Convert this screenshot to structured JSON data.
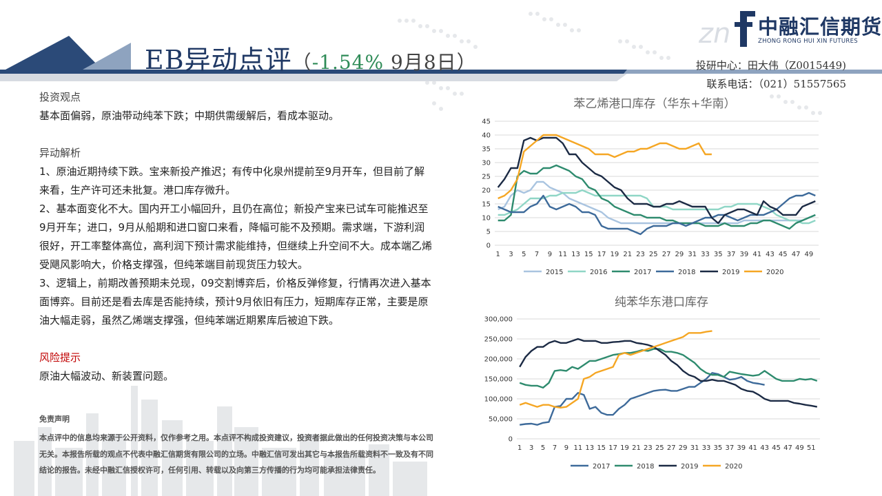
{
  "header": {
    "title_main": "EB异动点评",
    "title_open": "（",
    "title_pct": "-1.54%",
    "title_date": " 9月8日",
    "title_close": "）",
    "logo_cn": "中融汇信期货",
    "logo_en": "ZHONG RONG HUI XIN FUTURES",
    "analyst_line": "投研中心：田大伟（Z0015449)",
    "phone_line": "联系电话：（021）51557565"
  },
  "body": {
    "view_title": "投资观点",
    "view_text": "基本面偏弱，原油带动纯苯下跌；中期供需缓解后，看成本驱动。",
    "analysis_title": "异动解析",
    "analysis_1": "1、原油近期持续下跌。宝来新投产推迟；有传中化泉州提前至9月开车，但目前了解来看，生产许可还未批复。港口库存微升。",
    "analysis_2": "2、基本面变化不大。国内开工小幅回升，且仍在高位；新投产宝来已试车可能推迟至9月开车；进口，9月从船期和进口窗口来看，降幅可能不及预期。需求端，下游利润很好，开工率整体高位，高利润下预计需求能维持，但继续上升空间不大。成本端乙烯受飓风影响大，价格支撑强，但纯苯端目前现货压力较大。",
    "analysis_3": "3、逻辑上，前期改善预期未兑现，09交割博弈后，价格反弹修复，行情再次进入基本面博弈。目前还是看去库是否能持续，预计9月依旧有压力，短期库存正常，主要是原油大幅走弱，虽然乙烯端支撑强，但纯苯端近期累库后被迫下跌。",
    "risk_title": "风险提示",
    "risk_text": "原油大幅波动、新装置问题。",
    "disclaimer_title": "免责声明",
    "disclaimer_text": "本点评中的信息均来源于公开资料，仅作参考之用。本点评不构成投资建议，投资者据此做出的任何投资决策与本公司无关。本报告所载的观点不代表中融汇信期货有限公司的立场。中融汇信可发出其它与本报告所载资料不一致及有不同结论的报告。未经中融汇信授权许可，任何引用、转载以及向第三方传播的行为均可能承担法律责任。"
  },
  "chart_data": [
    {
      "type": "line",
      "title": "苯乙烯港口库存（华东+华南）",
      "xlabel": "",
      "ylabel": "",
      "x": [
        1,
        2,
        3,
        4,
        5,
        6,
        7,
        8,
        9,
        10,
        11,
        12,
        13,
        14,
        15,
        16,
        17,
        18,
        19,
        20,
        21,
        22,
        23,
        24,
        25,
        26,
        27,
        28,
        29,
        30,
        31,
        32,
        33,
        34,
        35,
        36,
        37,
        38,
        39,
        40,
        41,
        42,
        43,
        44,
        45,
        46,
        47,
        48,
        49,
        50
      ],
      "x_tick_labels": [
        1,
        3,
        5,
        7,
        9,
        11,
        13,
        15,
        17,
        19,
        21,
        23,
        25,
        27,
        29,
        31,
        33,
        35,
        37,
        39,
        41,
        43,
        45,
        47,
        49
      ],
      "ylim": [
        0,
        45
      ],
      "y_ticks": [
        0,
        5,
        10,
        15,
        20,
        25,
        30,
        35,
        40,
        45
      ],
      "grid": true,
      "legend_position": "bottom",
      "series": [
        {
          "name": "2015",
          "color": "#a9c4e0",
          "values": [
            13,
            14,
            18,
            20,
            19,
            20,
            23,
            23,
            21,
            20,
            19,
            17,
            16,
            15,
            14,
            13,
            12,
            10,
            9,
            8,
            8,
            8,
            8,
            8,
            8,
            8,
            8,
            8,
            8,
            8,
            8,
            8,
            8,
            8,
            8,
            8,
            8,
            8,
            9,
            9,
            9,
            9,
            9,
            9,
            9,
            9,
            9,
            9,
            10,
            11
          ]
        },
        {
          "name": "2016",
          "color": "#8fd6c6",
          "values": [
            11,
            11,
            12,
            13,
            15,
            17,
            17,
            17,
            18,
            18,
            19,
            19,
            19,
            20,
            19,
            18,
            18,
            18,
            18,
            18,
            18,
            18,
            18,
            17,
            14,
            14,
            14,
            13,
            13,
            13,
            13,
            13,
            13,
            13,
            13,
            14,
            14,
            15,
            15,
            15,
            15,
            14,
            13,
            11,
            10,
            9,
            9,
            8,
            8,
            9
          ]
        },
        {
          "name": "2017",
          "color": "#2e8b6e",
          "values": [
            9,
            9,
            11,
            25,
            27,
            26,
            26,
            28,
            28,
            29,
            28,
            27,
            25,
            24,
            21,
            20,
            17,
            16,
            14,
            13,
            12,
            11,
            11,
            10,
            10,
            10,
            9,
            9,
            8,
            8,
            8,
            8,
            7,
            7,
            7,
            8,
            7,
            7,
            7,
            8,
            8,
            9,
            9,
            8,
            7,
            6,
            8,
            9,
            10,
            11
          ]
        },
        {
          "name": "2018",
          "color": "#3d6a9a",
          "values": [
            14,
            13,
            12,
            12,
            12,
            14,
            15,
            18,
            14,
            13,
            14,
            15,
            14,
            12,
            12,
            11,
            7,
            6,
            6,
            6,
            6,
            5,
            4,
            6,
            7,
            7,
            7,
            8,
            8,
            7,
            8,
            9,
            10,
            10,
            11,
            11,
            10,
            9,
            10,
            11,
            11,
            11,
            12,
            13,
            15,
            17,
            18,
            18,
            19,
            18
          ]
        },
        {
          "name": "2019",
          "color": "#1b2a44",
          "values": [
            21,
            24,
            28,
            28,
            38,
            39,
            38,
            39,
            39,
            39,
            37,
            33,
            33,
            30,
            28,
            26,
            25,
            23,
            21,
            20,
            17,
            15,
            15,
            15,
            14,
            14,
            15,
            15,
            16,
            15,
            14,
            14,
            14,
            10,
            8,
            11,
            12,
            13,
            13,
            12,
            11,
            16,
            14,
            13,
            11,
            11,
            11,
            14,
            15,
            16
          ]
        },
        {
          "name": "2020",
          "color": "#f5a623",
          "values": [
            17,
            18,
            20,
            24,
            34,
            36,
            38,
            40,
            40,
            40,
            39,
            38,
            37,
            36,
            35,
            33,
            33,
            33,
            32,
            33,
            34,
            34,
            35,
            35,
            36,
            37,
            37,
            36,
            35,
            35,
            36,
            37,
            33,
            33,
            null,
            null,
            null,
            null,
            null,
            null,
            null,
            null,
            null,
            null,
            null,
            null,
            null,
            null,
            null,
            null
          ]
        }
      ]
    },
    {
      "type": "line",
      "title": "纯苯华东港口库存",
      "xlabel": "",
      "ylabel": "",
      "x": [
        1,
        2,
        3,
        4,
        5,
        6,
        7,
        8,
        9,
        10,
        11,
        12,
        13,
        14,
        15,
        16,
        17,
        18,
        19,
        20,
        21,
        22,
        23,
        24,
        25,
        26,
        27,
        28,
        29,
        30,
        31,
        32,
        33,
        34,
        35,
        36,
        37,
        38,
        39,
        40,
        41,
        42,
        43,
        44,
        45,
        46,
        47,
        48,
        49,
        50,
        51,
        52
      ],
      "x_tick_labels": [
        1,
        3,
        5,
        7,
        9,
        11,
        13,
        15,
        17,
        19,
        21,
        23,
        25,
        27,
        29,
        31,
        33,
        35,
        37,
        39,
        41,
        43,
        45,
        47,
        49,
        51
      ],
      "ylim": [
        0,
        300000
      ],
      "y_tick_labels": [
        "0",
        "50,000",
        "100,000",
        "150,000",
        "200,000",
        "250,000",
        "300,000"
      ],
      "grid": true,
      "legend_position": "bottom",
      "series": [
        {
          "name": "2017",
          "color": "#3d6a9a",
          "values": [
            35000,
            37000,
            38000,
            35000,
            40000,
            42000,
            80000,
            82000,
            100000,
            100000,
            115000,
            110000,
            75000,
            80000,
            65000,
            60000,
            60000,
            75000,
            85000,
            100000,
            105000,
            110000,
            115000,
            120000,
            122000,
            123000,
            120000,
            120000,
            125000,
            130000,
            130000,
            140000,
            150000,
            165000,
            162000,
            155000,
            148000,
            150000,
            155000,
            145000,
            140000,
            138000,
            135000,
            null,
            null,
            null,
            null,
            null,
            null,
            null,
            null,
            null
          ]
        },
        {
          "name": "2018",
          "color": "#2e8b6e",
          "values": [
            140000,
            135000,
            133000,
            133000,
            128000,
            140000,
            170000,
            172000,
            170000,
            180000,
            175000,
            185000,
            195000,
            195000,
            200000,
            205000,
            210000,
            212000,
            215000,
            215000,
            218000,
            222000,
            220000,
            225000,
            225000,
            218000,
            218000,
            215000,
            210000,
            200000,
            190000,
            175000,
            165000,
            160000,
            160000,
            155000,
            168000,
            165000,
            162000,
            160000,
            158000,
            160000,
            170000,
            160000,
            150000,
            145000,
            145000,
            145000,
            150000,
            148000,
            150000,
            145000
          ]
        },
        {
          "name": "2019",
          "color": "#1b2a44",
          "values": [
            180000,
            205000,
            220000,
            230000,
            230000,
            240000,
            245000,
            240000,
            240000,
            245000,
            250000,
            245000,
            245000,
            245000,
            240000,
            240000,
            242000,
            243000,
            245000,
            245000,
            240000,
            238000,
            235000,
            230000,
            220000,
            210000,
            195000,
            185000,
            170000,
            160000,
            155000,
            145000,
            145000,
            148000,
            145000,
            145000,
            140000,
            135000,
            125000,
            120000,
            118000,
            110000,
            100000,
            95000,
            95000,
            95000,
            95000,
            90000,
            88000,
            85000,
            83000,
            80000
          ]
        },
        {
          "name": "2020",
          "color": "#f5a623",
          "values": [
            85000,
            90000,
            85000,
            80000,
            85000,
            85000,
            80000,
            78000,
            80000,
            90000,
            100000,
            150000,
            155000,
            165000,
            170000,
            175000,
            180000,
            210000,
            215000,
            210000,
            215000,
            220000,
            225000,
            230000,
            235000,
            240000,
            245000,
            250000,
            255000,
            265000,
            265000,
            265000,
            268000,
            270000,
            null,
            null,
            null,
            null,
            null,
            null,
            null,
            null,
            null,
            null,
            null,
            null,
            null,
            null,
            null,
            null,
            null,
            null
          ]
        }
      ]
    }
  ]
}
